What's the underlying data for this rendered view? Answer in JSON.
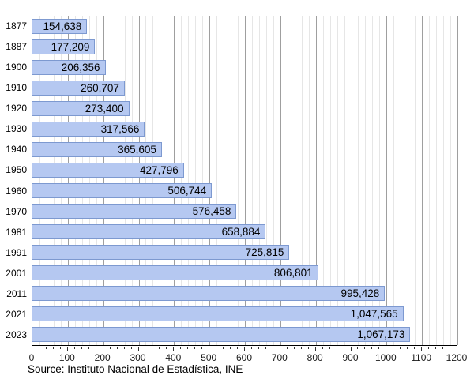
{
  "chart_data": {
    "type": "bar",
    "orientation": "horizontal",
    "title": "",
    "xlabel": "",
    "ylabel": "",
    "categories": [
      "1877",
      "1887",
      "1900",
      "1910",
      "1920",
      "1930",
      "1940",
      "1950",
      "1960",
      "1970",
      "1981",
      "1991",
      "2001",
      "2011",
      "2021",
      "2023"
    ],
    "values": [
      154638,
      177209,
      206356,
      260707,
      273400,
      317566,
      365605,
      427796,
      506744,
      576458,
      658884,
      725815,
      806801,
      995428,
      1047565,
      1067173
    ],
    "value_labels": [
      "154,638",
      "177,209",
      "206,356",
      "260,707",
      "273,400",
      "317,566",
      "365,605",
      "427,796",
      "506,744",
      "576,458",
      "658,884",
      "725,815",
      "806,801",
      "995,428",
      "1,047,565",
      "1,067,173"
    ],
    "x_axis_unit_divisor": 1000,
    "xlim": [
      0,
      1200
    ],
    "x_major_tick_step": 100,
    "x_minor_tick_step": 20,
    "x_tick_labels": [
      "0",
      "100",
      "200",
      "300",
      "400",
      "500",
      "600",
      "700",
      "800",
      "900",
      "1000",
      "1100",
      "1200"
    ],
    "grid": "vertical major and minor, on",
    "legend": "none"
  },
  "source_line": "Source: Instituto Nacional de Estadística, INE",
  "colors": {
    "background": "#ffffff",
    "bar_fill": "#b5c8f1",
    "bar_border": "#7d99d0",
    "grid_major": "#9f9f9f",
    "grid_minor": "#e6e6e6",
    "axis": "#000000",
    "text": "#000000"
  }
}
